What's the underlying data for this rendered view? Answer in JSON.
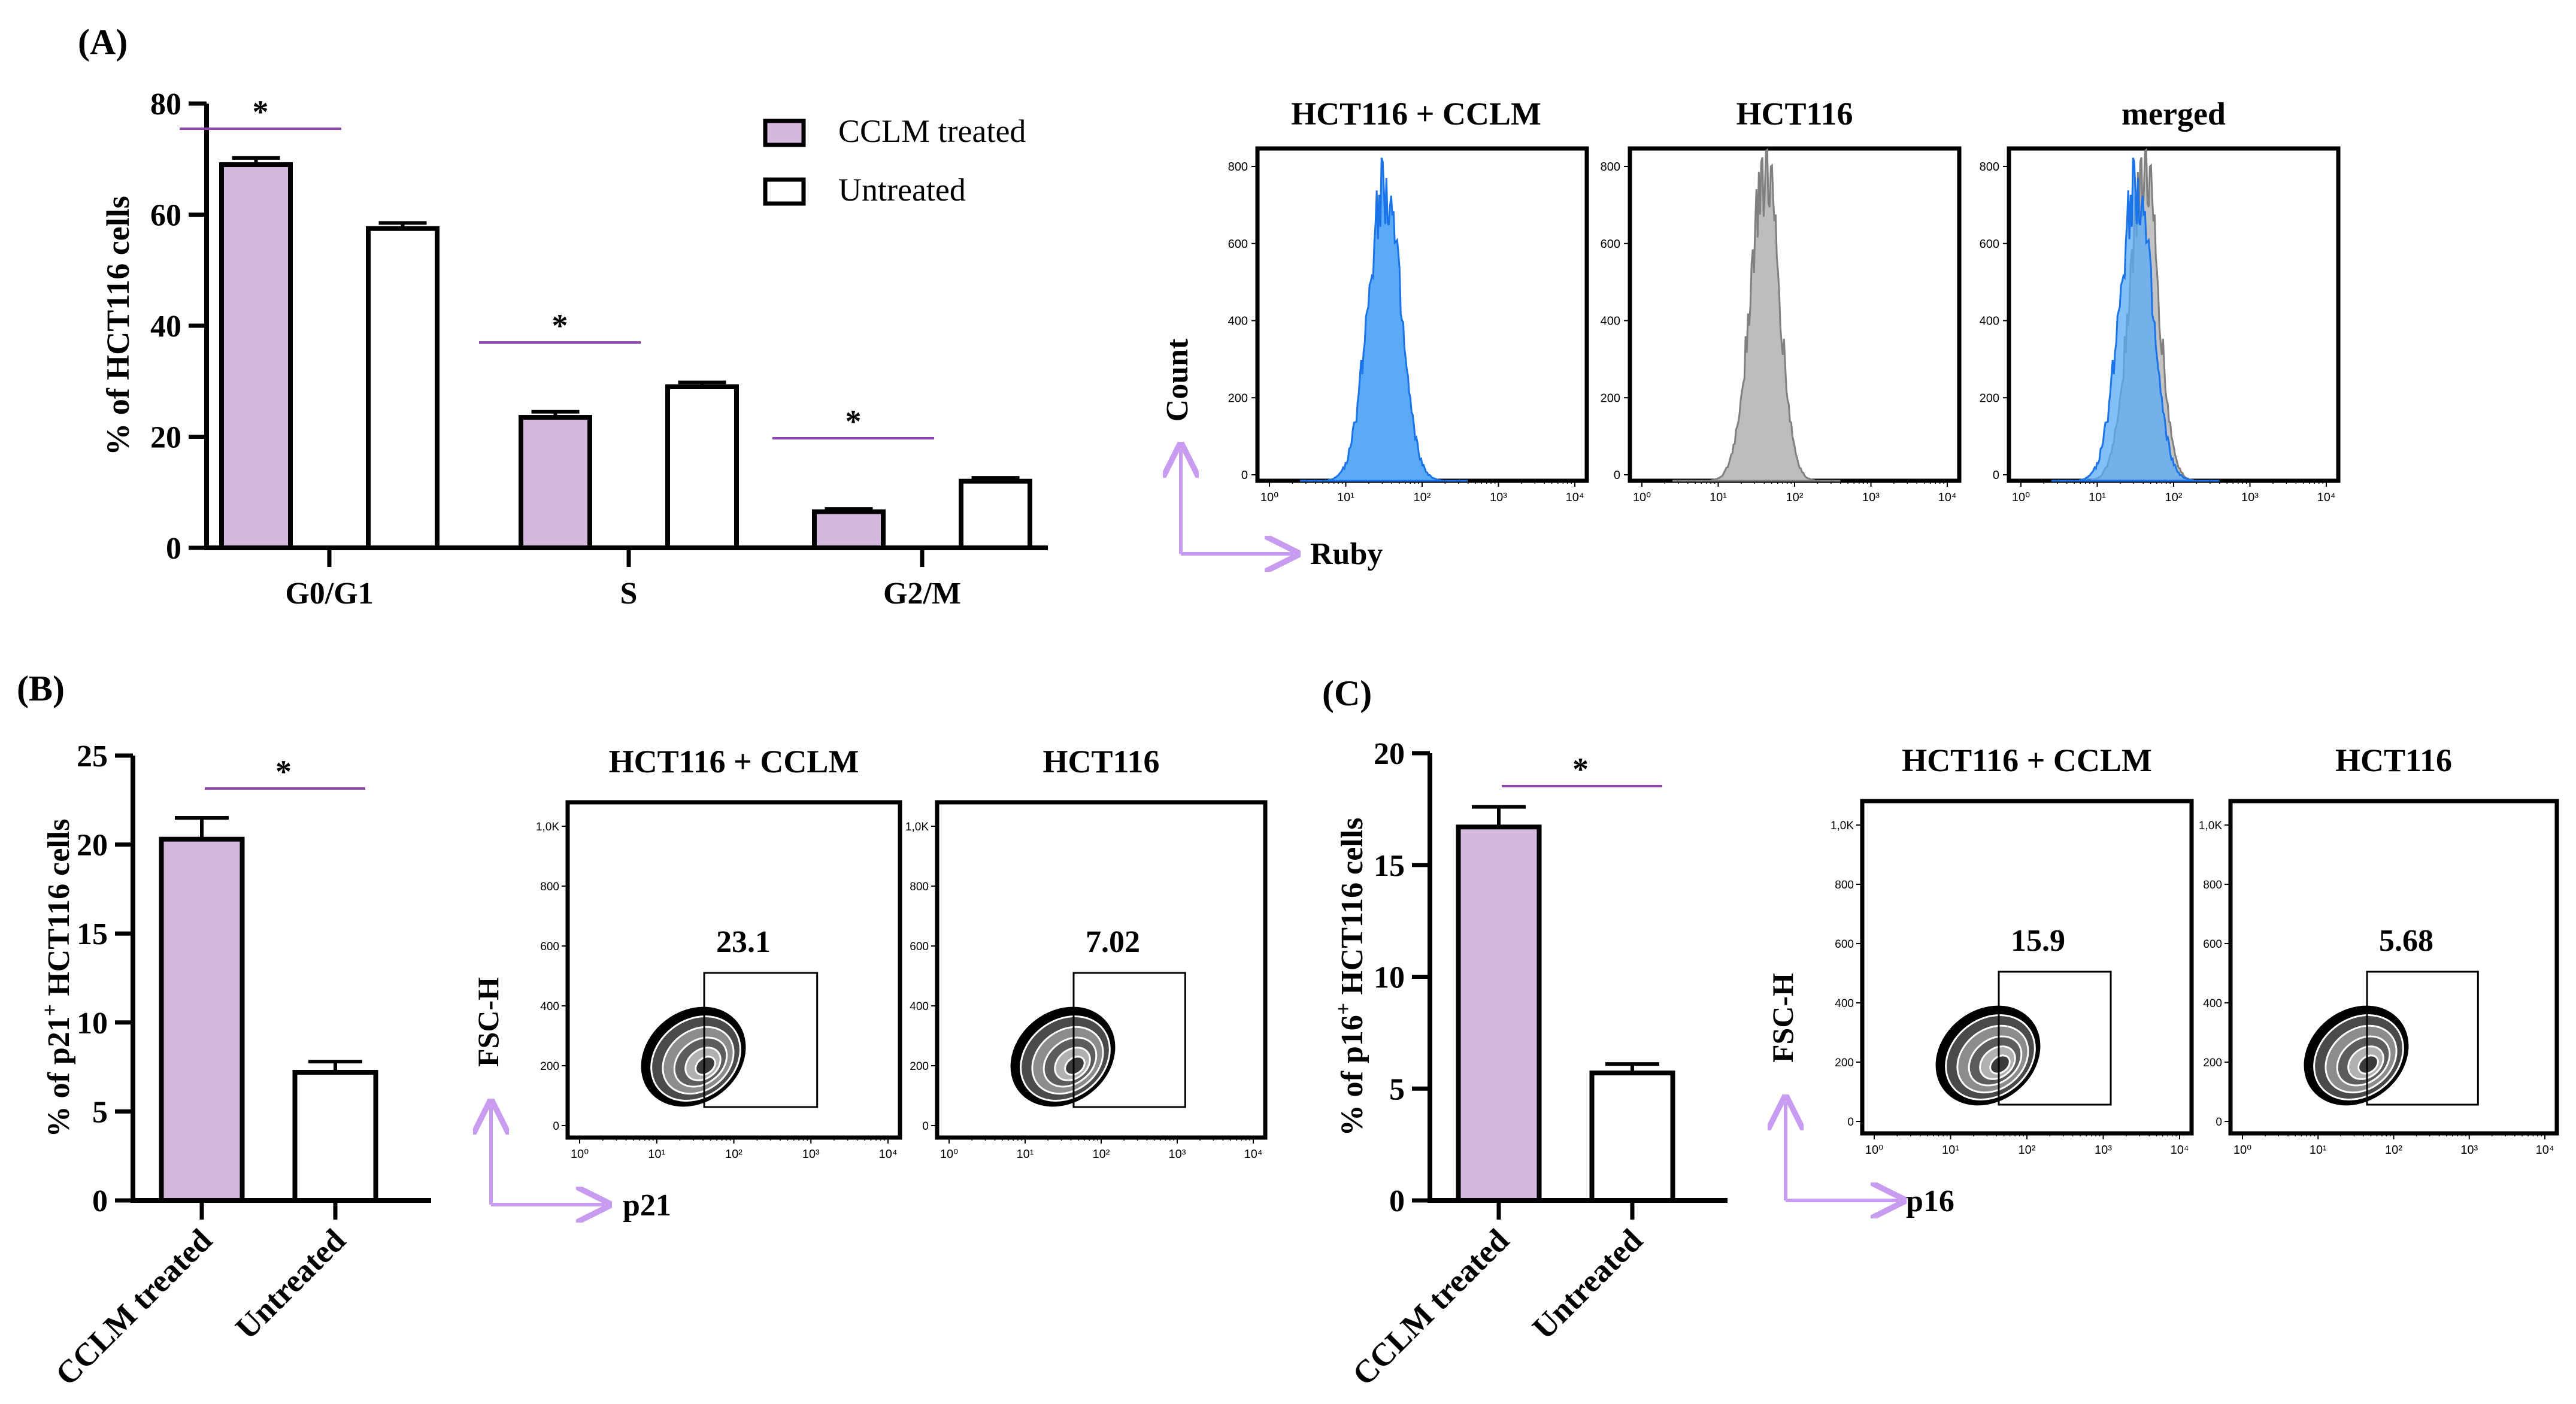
{
  "panels": {
    "a": "(A)",
    "b": "(B)",
    "c": "(C)"
  },
  "colors": {
    "treated": "#d4b8dd",
    "untreated": "#ffffff",
    "sig_line": "#8e44ad",
    "arrow": "#c89cf0",
    "hist_blue": "#5aaaf5",
    "hist_blue_edge": "#1a73e8",
    "hist_grey": "#bdbdbd",
    "hist_grey_edge": "#808080"
  },
  "chart_data": [
    {
      "id": "A-bar",
      "type": "bar",
      "title": "",
      "ylabel": "% of HCT116 cells",
      "xlabel": "",
      "ylim": [
        0,
        80
      ],
      "yticks": [
        "0",
        "20",
        "40",
        "60",
        "80"
      ],
      "categories": [
        "G0/G1",
        "S",
        "G2/M"
      ],
      "series": [
        {
          "name": "CCLM treated",
          "values": [
            69,
            23.5,
            6.5
          ],
          "errors": [
            1.2,
            1.0,
            0.5
          ]
        },
        {
          "name": "Untreated",
          "values": [
            57.5,
            29,
            12
          ],
          "errors": [
            1.0,
            0.8,
            0.6
          ]
        }
      ],
      "significance": [
        "*",
        "*",
        "*"
      ],
      "legend": [
        "CCLM treated",
        "Untreated"
      ],
      "legend_position": "top-right"
    },
    {
      "id": "A-hist",
      "type": "histogram",
      "xlabel": "Ruby",
      "ylabel": "Count",
      "xticks": [
        "10⁰",
        "10¹",
        "10²",
        "10³",
        "10⁴"
      ],
      "yticks": [
        "0",
        "200",
        "400",
        "600",
        "800"
      ],
      "titles": [
        "HCT116 + CCLM",
        "HCT116",
        "merged"
      ]
    },
    {
      "id": "B-bar",
      "type": "bar",
      "ylabel_pre": "% of p21",
      "ylabel_sup": "+",
      "ylabel_post": " HCT116 cells",
      "ylim": [
        0,
        25
      ],
      "yticks": [
        "0",
        "5",
        "10",
        "15",
        "20",
        "25"
      ],
      "categories": [
        "CCLM treated",
        "Untreated"
      ],
      "values": [
        20.3,
        7.2
      ],
      "errors": [
        1.2,
        0.6
      ],
      "significance": "*"
    },
    {
      "id": "B-flow",
      "type": "contour",
      "xlabel": "p21",
      "ylabel": "FSC-H",
      "xticks": [
        "10⁰",
        "10¹",
        "10²",
        "10³",
        "10⁴"
      ],
      "yticks": [
        "0",
        "200",
        "400",
        "600",
        "800",
        "1,0K"
      ],
      "titles": [
        "HCT116 + CCLM",
        "HCT116"
      ],
      "gate_values": [
        "23.1",
        "7.02"
      ]
    },
    {
      "id": "C-bar",
      "type": "bar",
      "ylabel_pre": "% of p16",
      "ylabel_sup": "+",
      "ylabel_post": " HCT116 cells",
      "ylim": [
        0,
        20
      ],
      "yticks": [
        "0",
        "5",
        "10",
        "15",
        "20"
      ],
      "categories": [
        "CCLM treated",
        "Untreated"
      ],
      "values": [
        16.7,
        5.7
      ],
      "errors": [
        0.9,
        0.4
      ],
      "significance": "*"
    },
    {
      "id": "C-flow",
      "type": "contour",
      "xlabel": "p16",
      "ylabel": "FSC-H",
      "xticks": [
        "10⁰",
        "10¹",
        "10²",
        "10³",
        "10⁴"
      ],
      "yticks": [
        "0",
        "200",
        "400",
        "600",
        "800",
        "1,0K"
      ],
      "titles": [
        "HCT116 + CCLM",
        "HCT116"
      ],
      "gate_values": [
        "15.9",
        "5.68"
      ]
    }
  ]
}
